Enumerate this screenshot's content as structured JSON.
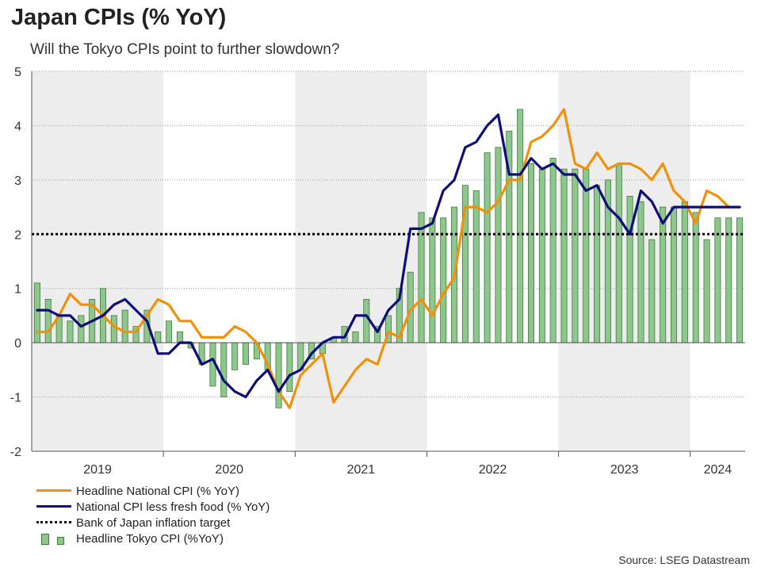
{
  "title": "Japan CPIs (% YoY)",
  "subtitle": "Will the Tokyo CPIs point to further slowdown?",
  "source": "Source: LSEG Datastream",
  "colors": {
    "headline": "#f0900b",
    "core": "#0e0e7a",
    "bar_fill": "#8ec78b",
    "bar_stroke": "#3e7a3e",
    "target": "#000000",
    "shade": "#ededed"
  },
  "chart_data": {
    "type": "bar",
    "x_start": "2019-01",
    "x_end": "2024-05",
    "x_tick_labels": [
      "2019",
      "2020",
      "2021",
      "2022",
      "2023",
      "2024"
    ],
    "ylim": [
      -2,
      5
    ],
    "y_ticks": [
      -2,
      -1,
      0,
      1,
      2,
      3,
      4,
      5
    ],
    "grid": true,
    "legend_position": "bottom-left",
    "shaded_years": [
      "2019",
      "2021",
      "2023"
    ],
    "series": [
      {
        "name": "Headline National CPI (% YoY)",
        "type": "line",
        "x": [
          "2019-01",
          "2019-02",
          "2019-03",
          "2019-04",
          "2019-05",
          "2019-06",
          "2019-07",
          "2019-08",
          "2019-09",
          "2019-10",
          "2019-11",
          "2019-12",
          "2020-01",
          "2020-02",
          "2020-03",
          "2020-04",
          "2020-05",
          "2020-06",
          "2020-07",
          "2020-08",
          "2020-09",
          "2020-10",
          "2020-11",
          "2020-12",
          "2021-01",
          "2021-02",
          "2021-03",
          "2021-04",
          "2021-05",
          "2021-06",
          "2021-07",
          "2021-08",
          "2021-09",
          "2021-10",
          "2021-11",
          "2021-12",
          "2022-01",
          "2022-02",
          "2022-03",
          "2022-04",
          "2022-05",
          "2022-06",
          "2022-07",
          "2022-08",
          "2022-09",
          "2022-10",
          "2022-11",
          "2022-12",
          "2023-01",
          "2023-02",
          "2023-03",
          "2023-04",
          "2023-05",
          "2023-06",
          "2023-07",
          "2023-08",
          "2023-09",
          "2023-10",
          "2023-11",
          "2023-12",
          "2024-01",
          "2024-02",
          "2024-03",
          "2024-04"
        ],
        "values": [
          0.2,
          0.2,
          0.5,
          0.9,
          0.7,
          0.7,
          0.5,
          0.3,
          0.2,
          0.2,
          0.5,
          0.8,
          0.7,
          0.4,
          0.4,
          0.1,
          0.1,
          0.1,
          0.3,
          0.2,
          0.0,
          -0.4,
          -0.9,
          -1.2,
          -0.6,
          -0.4,
          -0.2,
          -1.1,
          -0.8,
          -0.5,
          -0.3,
          -0.4,
          0.2,
          0.1,
          0.6,
          0.8,
          0.5,
          0.9,
          1.2,
          2.5,
          2.5,
          2.4,
          2.6,
          3.0,
          3.0,
          3.7,
          3.8,
          4.0,
          4.3,
          3.3,
          3.2,
          3.5,
          3.2,
          3.3,
          3.3,
          3.2,
          3.0,
          3.3,
          2.8,
          2.6,
          2.2,
          2.8,
          2.7,
          2.5
        ]
      },
      {
        "name": "National CPI less fresh food (% YoY)",
        "type": "line",
        "x": [
          "2019-01",
          "2019-02",
          "2019-03",
          "2019-04",
          "2019-05",
          "2019-06",
          "2019-07",
          "2019-08",
          "2019-09",
          "2019-10",
          "2019-11",
          "2019-12",
          "2020-01",
          "2020-02",
          "2020-03",
          "2020-04",
          "2020-05",
          "2020-06",
          "2020-07",
          "2020-08",
          "2020-09",
          "2020-10",
          "2020-11",
          "2020-12",
          "2021-01",
          "2021-02",
          "2021-03",
          "2021-04",
          "2021-05",
          "2021-06",
          "2021-07",
          "2021-08",
          "2021-09",
          "2021-10",
          "2021-11",
          "2021-12",
          "2022-01",
          "2022-02",
          "2022-03",
          "2022-04",
          "2022-05",
          "2022-06",
          "2022-07",
          "2022-08",
          "2022-09",
          "2022-10",
          "2022-11",
          "2022-12",
          "2023-01",
          "2023-02",
          "2023-03",
          "2023-04",
          "2023-05",
          "2023-06",
          "2023-07",
          "2023-08",
          "2023-09",
          "2023-10",
          "2023-11",
          "2023-12",
          "2024-01",
          "2024-02",
          "2024-03",
          "2024-04",
          "2024-05"
        ],
        "values": [
          0.6,
          0.6,
          0.5,
          0.5,
          0.3,
          0.4,
          0.5,
          0.7,
          0.8,
          0.6,
          0.4,
          -0.2,
          -0.2,
          0.0,
          0.0,
          -0.4,
          -0.3,
          -0.7,
          -0.9,
          -1.0,
          -0.7,
          -0.5,
          -0.9,
          -0.6,
          -0.5,
          -0.2,
          0.0,
          0.1,
          0.1,
          0.5,
          0.5,
          0.2,
          0.6,
          0.8,
          2.1,
          2.1,
          2.2,
          2.8,
          3.0,
          3.6,
          3.7,
          4.0,
          4.2,
          3.1,
          3.1,
          3.4,
          3.2,
          3.3,
          3.1,
          3.1,
          2.8,
          2.9,
          2.5,
          2.3,
          2.0,
          2.8,
          2.6,
          2.2,
          2.5,
          2.5,
          2.5,
          2.5,
          2.5,
          2.5,
          2.5
        ]
      },
      {
        "name": "Bank of Japan inflation target",
        "type": "line",
        "values": [
          2.0
        ]
      },
      {
        "name": "Headline Tokyo CPI (%YoY)",
        "type": "bar",
        "x": [
          "2019-01",
          "2019-02",
          "2019-03",
          "2019-04",
          "2019-05",
          "2019-06",
          "2019-07",
          "2019-08",
          "2019-09",
          "2019-10",
          "2019-11",
          "2019-12",
          "2020-01",
          "2020-02",
          "2020-03",
          "2020-04",
          "2020-05",
          "2020-06",
          "2020-07",
          "2020-08",
          "2020-09",
          "2020-10",
          "2020-11",
          "2020-12",
          "2021-01",
          "2021-02",
          "2021-03",
          "2021-04",
          "2021-05",
          "2021-06",
          "2021-07",
          "2021-08",
          "2021-09",
          "2021-10",
          "2021-11",
          "2021-12",
          "2022-01",
          "2022-02",
          "2022-03",
          "2022-04",
          "2022-05",
          "2022-06",
          "2022-07",
          "2022-08",
          "2022-09",
          "2022-10",
          "2022-11",
          "2022-12",
          "2023-01",
          "2023-02",
          "2023-03",
          "2023-04",
          "2023-05",
          "2023-06",
          "2023-07",
          "2023-08",
          "2023-09",
          "2023-10",
          "2023-11",
          "2023-12",
          "2024-01",
          "2024-02",
          "2024-03",
          "2024-04",
          "2024-05"
        ],
        "values": [
          1.1,
          0.8,
          0.5,
          0.4,
          0.5,
          0.8,
          1.0,
          0.5,
          0.6,
          0.3,
          0.6,
          0.2,
          0.4,
          0.2,
          -0.1,
          -0.4,
          -0.8,
          -1.0,
          -0.5,
          -0.4,
          -0.3,
          -0.5,
          -1.2,
          -0.9,
          -0.5,
          -0.3,
          -0.2,
          0.1,
          0.3,
          0.2,
          0.8,
          0.3,
          0.5,
          1.0,
          1.3,
          2.4,
          2.3,
          2.3,
          2.5,
          2.9,
          2.8,
          3.5,
          3.6,
          3.9,
          4.3,
          3.3,
          3.2,
          3.4,
          3.2,
          3.2,
          3.2,
          2.9,
          3.0,
          3.3,
          2.7,
          2.6,
          1.9,
          2.5,
          2.5,
          2.6,
          2.4,
          1.9,
          2.3,
          2.3,
          2.3
        ]
      }
    ]
  }
}
